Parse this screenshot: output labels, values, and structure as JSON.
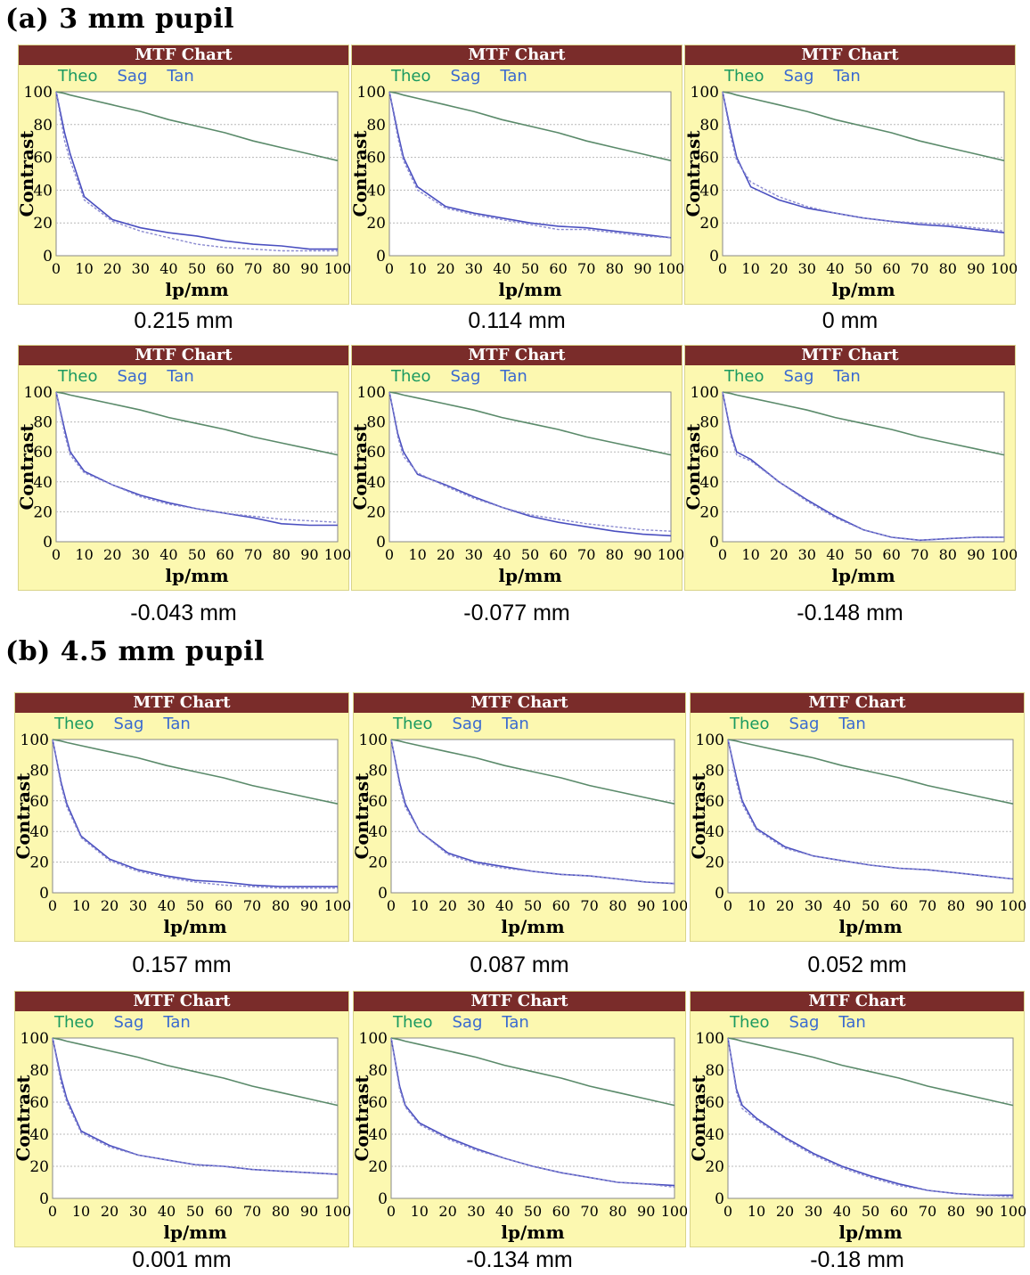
{
  "sections": [
    {
      "label": "(a)  3 mm pupil"
    },
    {
      "label": "(b)  4.5 mm pupil"
    }
  ],
  "panel_common": {
    "header": "MTF Chart",
    "legend": {
      "theo": "Theo",
      "sag": "Sag",
      "tan": "Tan"
    },
    "xlabel": "lp/mm",
    "ylabel": "Contrast",
    "colors": {
      "header_bg": "#7a2c2a",
      "panel_bg": "#fcf8b0",
      "theo": "#5a8a6a",
      "sag": "#4a4fc0",
      "tan": "#8a8ad0",
      "legend_theo": "#1a9a60",
      "legend_sag": "#3a6ad0",
      "legend_tan": "#3a6ad0"
    }
  },
  "chart_data": [
    {
      "type": "line",
      "title": "MTF Chart",
      "position": "0.215 mm",
      "xlabel": "lp/mm",
      "ylabel": "Contrast",
      "xlim": [
        0,
        100
      ],
      "ylim": [
        0,
        100
      ],
      "xticks": [
        0,
        10,
        20,
        30,
        40,
        50,
        60,
        70,
        80,
        90,
        100
      ],
      "yticks": [
        0,
        20,
        40,
        60,
        80,
        100
      ],
      "x": [
        0,
        3,
        5,
        10,
        20,
        30,
        40,
        50,
        60,
        70,
        80,
        90,
        100
      ],
      "series": [
        {
          "name": "Theo",
          "values": [
            100,
            99,
            98,
            96,
            92,
            88,
            83,
            79,
            75,
            70,
            66,
            62,
            58
          ]
        },
        {
          "name": "Sag",
          "values": [
            100,
            75,
            62,
            36,
            22,
            17,
            14,
            12,
            9,
            7,
            6,
            4,
            4
          ]
        },
        {
          "name": "Tan",
          "values": [
            100,
            70,
            58,
            34,
            21,
            15,
            11,
            7,
            5,
            4,
            3,
            3,
            3
          ]
        }
      ]
    },
    {
      "type": "line",
      "title": "MTF Chart",
      "position": "0.114 mm",
      "xlabel": "lp/mm",
      "ylabel": "Contrast",
      "xlim": [
        0,
        100
      ],
      "ylim": [
        0,
        100
      ],
      "xticks": [
        0,
        10,
        20,
        30,
        40,
        50,
        60,
        70,
        80,
        90,
        100
      ],
      "yticks": [
        0,
        20,
        40,
        60,
        80,
        100
      ],
      "x": [
        0,
        3,
        5,
        10,
        20,
        30,
        40,
        50,
        60,
        70,
        80,
        90,
        100
      ],
      "series": [
        {
          "name": "Theo",
          "values": [
            100,
            99,
            98,
            96,
            92,
            88,
            83,
            79,
            75,
            70,
            66,
            62,
            58
          ]
        },
        {
          "name": "Sag",
          "values": [
            100,
            75,
            60,
            42,
            30,
            26,
            23,
            20,
            18,
            17,
            15,
            13,
            11
          ]
        },
        {
          "name": "Tan",
          "values": [
            100,
            72,
            58,
            40,
            29,
            25,
            22,
            19,
            16,
            16,
            14,
            12,
            11
          ]
        }
      ]
    },
    {
      "type": "line",
      "title": "MTF Chart",
      "position": "0 mm",
      "xlabel": "lp/mm",
      "ylabel": "Contrast",
      "xlim": [
        0,
        100
      ],
      "ylim": [
        0,
        100
      ],
      "xticks": [
        0,
        10,
        20,
        30,
        40,
        50,
        60,
        70,
        80,
        90,
        100
      ],
      "yticks": [
        0,
        20,
        40,
        60,
        80,
        100
      ],
      "x": [
        0,
        3,
        5,
        10,
        20,
        30,
        40,
        50,
        60,
        70,
        80,
        90,
        100
      ],
      "series": [
        {
          "name": "Theo",
          "values": [
            100,
            99,
            98,
            96,
            92,
            88,
            83,
            79,
            75,
            70,
            66,
            62,
            58
          ]
        },
        {
          "name": "Sag",
          "values": [
            100,
            75,
            60,
            42,
            34,
            29,
            26,
            23,
            21,
            19,
            18,
            16,
            14
          ]
        },
        {
          "name": "Tan",
          "values": [
            100,
            72,
            58,
            45,
            36,
            30,
            26,
            23,
            21,
            20,
            19,
            17,
            15
          ]
        }
      ]
    },
    {
      "type": "line",
      "title": "MTF Chart",
      "position": "-0.043 mm",
      "xlabel": "lp/mm",
      "ylabel": "Contrast",
      "xlim": [
        0,
        100
      ],
      "ylim": [
        0,
        100
      ],
      "xticks": [
        0,
        10,
        20,
        30,
        40,
        50,
        60,
        70,
        80,
        90,
        100
      ],
      "yticks": [
        0,
        20,
        40,
        60,
        80,
        100
      ],
      "x": [
        0,
        3,
        5,
        10,
        20,
        30,
        40,
        50,
        60,
        70,
        80,
        90,
        100
      ],
      "series": [
        {
          "name": "Theo",
          "values": [
            100,
            99,
            98,
            96,
            92,
            88,
            83,
            79,
            75,
            70,
            66,
            62,
            58
          ]
        },
        {
          "name": "Sag",
          "values": [
            100,
            75,
            60,
            47,
            38,
            31,
            26,
            22,
            19,
            16,
            12,
            11,
            11
          ]
        },
        {
          "name": "Tan",
          "values": [
            100,
            72,
            58,
            46,
            38,
            30,
            25,
            22,
            19,
            17,
            15,
            14,
            13
          ]
        }
      ]
    },
    {
      "type": "line",
      "title": "MTF Chart",
      "position": "-0.077 mm",
      "xlabel": "lp/mm",
      "ylabel": "Contrast",
      "xlim": [
        0,
        100
      ],
      "ylim": [
        0,
        100
      ],
      "xticks": [
        0,
        10,
        20,
        30,
        40,
        50,
        60,
        70,
        80,
        90,
        100
      ],
      "yticks": [
        0,
        20,
        40,
        60,
        80,
        100
      ],
      "x": [
        0,
        3,
        5,
        10,
        20,
        30,
        40,
        50,
        60,
        70,
        80,
        90,
        100
      ],
      "series": [
        {
          "name": "Theo",
          "values": [
            100,
            99,
            98,
            96,
            92,
            88,
            83,
            79,
            75,
            70,
            66,
            62,
            58
          ]
        },
        {
          "name": "Sag",
          "values": [
            100,
            72,
            60,
            45,
            38,
            30,
            23,
            17,
            13,
            10,
            7,
            5,
            4
          ]
        },
        {
          "name": "Tan",
          "values": [
            100,
            70,
            57,
            46,
            37,
            29,
            23,
            18,
            15,
            12,
            10,
            8,
            7
          ]
        }
      ]
    },
    {
      "type": "line",
      "title": "MTF Chart",
      "position": "-0.148 mm",
      "xlabel": "lp/mm",
      "ylabel": "Contrast",
      "xlim": [
        0,
        100
      ],
      "ylim": [
        0,
        100
      ],
      "xticks": [
        0,
        10,
        20,
        30,
        40,
        50,
        60,
        70,
        80,
        90,
        100
      ],
      "yticks": [
        0,
        20,
        40,
        60,
        80,
        100
      ],
      "x": [
        0,
        3,
        5,
        10,
        20,
        30,
        40,
        50,
        60,
        70,
        80,
        90,
        100
      ],
      "series": [
        {
          "name": "Theo",
          "values": [
            100,
            99,
            98,
            96,
            92,
            88,
            83,
            79,
            75,
            70,
            66,
            62,
            58
          ]
        },
        {
          "name": "Sag",
          "values": [
            100,
            72,
            60,
            55,
            40,
            28,
            17,
            8,
            3,
            1,
            2,
            3,
            3
          ]
        },
        {
          "name": "Tan",
          "values": [
            100,
            70,
            58,
            54,
            40,
            27,
            16,
            8,
            3,
            1,
            2,
            3,
            3
          ]
        }
      ]
    },
    {
      "type": "line",
      "title": "MTF Chart",
      "position": "0.157 mm",
      "xlabel": "lp/mm",
      "ylabel": "Contrast",
      "xlim": [
        0,
        100
      ],
      "ylim": [
        0,
        100
      ],
      "xticks": [
        0,
        10,
        20,
        30,
        40,
        50,
        60,
        70,
        80,
        90,
        100
      ],
      "yticks": [
        0,
        20,
        40,
        60,
        80,
        100
      ],
      "x": [
        0,
        3,
        5,
        10,
        20,
        30,
        40,
        50,
        60,
        70,
        80,
        90,
        100
      ],
      "series": [
        {
          "name": "Theo",
          "values": [
            100,
            99,
            98,
            96,
            92,
            88,
            83,
            79,
            75,
            70,
            66,
            62,
            58
          ]
        },
        {
          "name": "Sag",
          "values": [
            100,
            72,
            58,
            37,
            22,
            15,
            11,
            8,
            7,
            5,
            4,
            4,
            4
          ]
        },
        {
          "name": "Tan",
          "values": [
            100,
            70,
            56,
            36,
            21,
            14,
            10,
            7,
            5,
            4,
            3,
            3,
            3
          ]
        }
      ]
    },
    {
      "type": "line",
      "title": "MTF Chart",
      "position": "0.087 mm",
      "xlabel": "lp/mm",
      "ylabel": "Contrast",
      "xlim": [
        0,
        100
      ],
      "ylim": [
        0,
        100
      ],
      "xticks": [
        0,
        10,
        20,
        30,
        40,
        50,
        60,
        70,
        80,
        90,
        100
      ],
      "yticks": [
        0,
        20,
        40,
        60,
        80,
        100
      ],
      "x": [
        0,
        3,
        5,
        10,
        20,
        30,
        40,
        50,
        60,
        70,
        80,
        90,
        100
      ],
      "series": [
        {
          "name": "Theo",
          "values": [
            100,
            99,
            98,
            96,
            92,
            88,
            83,
            79,
            75,
            70,
            66,
            62,
            58
          ]
        },
        {
          "name": "Sag",
          "values": [
            100,
            72,
            58,
            40,
            26,
            20,
            17,
            14,
            12,
            11,
            9,
            7,
            6
          ]
        },
        {
          "name": "Tan",
          "values": [
            100,
            70,
            56,
            40,
            25,
            19,
            16,
            14,
            12,
            11,
            9,
            7,
            6
          ]
        }
      ]
    },
    {
      "type": "line",
      "title": "MTF Chart",
      "position": "0.052 mm",
      "xlabel": "lp/mm",
      "ylabel": "Contrast",
      "xlim": [
        0,
        100
      ],
      "ylim": [
        0,
        100
      ],
      "xticks": [
        0,
        10,
        20,
        30,
        40,
        50,
        60,
        70,
        80,
        90,
        100
      ],
      "yticks": [
        0,
        20,
        40,
        60,
        80,
        100
      ],
      "x": [
        0,
        3,
        5,
        10,
        20,
        30,
        40,
        50,
        60,
        70,
        80,
        90,
        100
      ],
      "series": [
        {
          "name": "Theo",
          "values": [
            100,
            99,
            98,
            96,
            92,
            88,
            83,
            79,
            75,
            70,
            66,
            62,
            58
          ]
        },
        {
          "name": "Sag",
          "values": [
            100,
            75,
            60,
            42,
            30,
            24,
            21,
            18,
            16,
            15,
            13,
            11,
            9
          ]
        },
        {
          "name": "Tan",
          "values": [
            100,
            72,
            58,
            41,
            29,
            24,
            21,
            18,
            16,
            15,
            13,
            11,
            9
          ]
        }
      ]
    },
    {
      "type": "line",
      "title": "MTF Chart",
      "position": "0.001 mm",
      "xlabel": "lp/mm",
      "ylabel": "Contrast",
      "xlim": [
        0,
        100
      ],
      "ylim": [
        0,
        100
      ],
      "xticks": [
        0,
        10,
        20,
        30,
        40,
        50,
        60,
        70,
        80,
        90,
        100
      ],
      "yticks": [
        0,
        20,
        40,
        60,
        80,
        100
      ],
      "x": [
        0,
        3,
        5,
        10,
        20,
        30,
        40,
        50,
        60,
        70,
        80,
        90,
        100
      ],
      "series": [
        {
          "name": "Theo",
          "values": [
            100,
            99,
            98,
            96,
            92,
            88,
            83,
            79,
            75,
            70,
            66,
            62,
            58
          ]
        },
        {
          "name": "Sag",
          "values": [
            100,
            75,
            62,
            42,
            33,
            27,
            24,
            21,
            20,
            18,
            17,
            16,
            15
          ]
        },
        {
          "name": "Tan",
          "values": [
            100,
            72,
            60,
            41,
            32,
            27,
            24,
            21,
            20,
            18,
            17,
            16,
            15
          ]
        }
      ]
    },
    {
      "type": "line",
      "title": "MTF Chart",
      "position": "-0.134 mm",
      "xlabel": "lp/mm",
      "ylabel": "Contrast",
      "xlim": [
        0,
        100
      ],
      "ylim": [
        0,
        100
      ],
      "xticks": [
        0,
        10,
        20,
        30,
        40,
        50,
        60,
        70,
        80,
        90,
        100
      ],
      "yticks": [
        0,
        20,
        40,
        60,
        80,
        100
      ],
      "x": [
        0,
        3,
        5,
        10,
        20,
        30,
        40,
        50,
        60,
        70,
        80,
        90,
        100
      ],
      "series": [
        {
          "name": "Theo",
          "values": [
            100,
            99,
            98,
            96,
            92,
            88,
            83,
            79,
            75,
            70,
            66,
            62,
            58
          ]
        },
        {
          "name": "Sag",
          "values": [
            100,
            70,
            58,
            47,
            38,
            31,
            25,
            20,
            16,
            13,
            10,
            9,
            8
          ]
        },
        {
          "name": "Tan",
          "values": [
            100,
            68,
            57,
            46,
            37,
            30,
            25,
            20,
            16,
            13,
            10,
            9,
            7
          ]
        }
      ]
    },
    {
      "type": "line",
      "title": "MTF Chart",
      "position": "-0.18 mm",
      "xlabel": "lp/mm",
      "ylabel": "Contrast",
      "xlim": [
        0,
        100
      ],
      "ylim": [
        0,
        100
      ],
      "xticks": [
        0,
        10,
        20,
        30,
        40,
        50,
        60,
        70,
        80,
        90,
        100
      ],
      "yticks": [
        0,
        20,
        40,
        60,
        80,
        100
      ],
      "x": [
        0,
        3,
        5,
        10,
        20,
        30,
        40,
        50,
        60,
        70,
        80,
        90,
        100
      ],
      "series": [
        {
          "name": "Theo",
          "values": [
            100,
            99,
            98,
            96,
            92,
            88,
            83,
            79,
            75,
            70,
            66,
            62,
            58
          ]
        },
        {
          "name": "Sag",
          "values": [
            100,
            68,
            58,
            50,
            38,
            28,
            20,
            14,
            9,
            5,
            3,
            2,
            2
          ]
        },
        {
          "name": "Tan",
          "values": [
            100,
            66,
            56,
            49,
            37,
            27,
            19,
            13,
            8,
            5,
            3,
            2,
            1
          ]
        }
      ]
    }
  ]
}
